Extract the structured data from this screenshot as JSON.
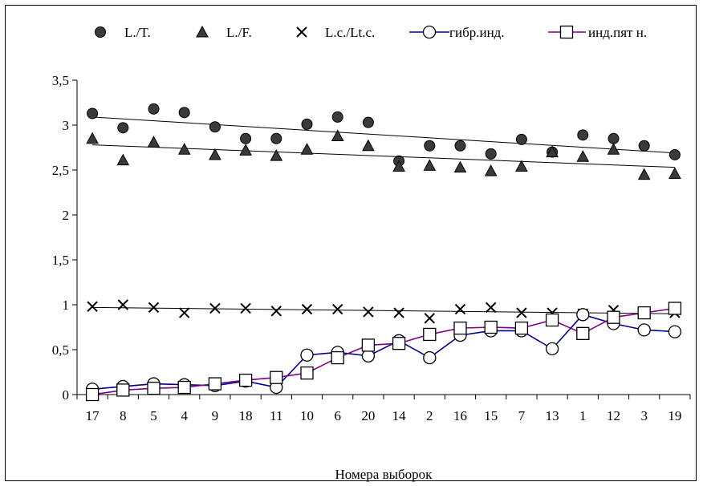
{
  "chart_data": {
    "type": "scatter",
    "xlabel": "Номера выборок",
    "ylabel": "",
    "categories": [
      "17",
      "8",
      "5",
      "4",
      "9",
      "18",
      "11",
      "10",
      "6",
      "20",
      "14",
      "2",
      "16",
      "15",
      "7",
      "13",
      "1",
      "12",
      "3",
      "19"
    ],
    "yticks": [
      "0",
      "0,5",
      "1",
      "1,5",
      "2",
      "2,5",
      "3",
      "3,5"
    ],
    "ylim": [
      0,
      3.5
    ],
    "legend_position": "top",
    "grid": false,
    "series": [
      {
        "name": "L./T.",
        "marker": "circle-filled",
        "line": false,
        "values": [
          3.13,
          2.97,
          3.18,
          3.14,
          2.98,
          2.85,
          2.85,
          3.01,
          3.09,
          3.03,
          2.6,
          2.77,
          2.77,
          2.68,
          2.84,
          2.7,
          2.89,
          2.85,
          2.77,
          2.67
        ],
        "trend": [
          3.09,
          2.69
        ]
      },
      {
        "name": "L./F.",
        "marker": "triangle-filled",
        "line": false,
        "values": [
          2.85,
          2.61,
          2.81,
          2.73,
          2.67,
          2.72,
          2.66,
          2.73,
          2.88,
          2.77,
          2.54,
          2.55,
          2.53,
          2.49,
          2.54,
          2.7,
          2.65,
          2.73,
          2.45,
          2.46
        ],
        "trend": [
          2.78,
          2.53
        ]
      },
      {
        "name": "L.c./Lt.c.",
        "marker": "x",
        "line": false,
        "values": [
          0.98,
          1.0,
          0.97,
          0.91,
          0.96,
          0.96,
          0.93,
          0.95,
          0.95,
          0.92,
          0.91,
          0.85,
          0.95,
          0.97,
          0.91,
          0.91,
          0.9,
          0.94,
          0.92,
          0.91
        ],
        "trend": [
          0.97,
          0.9
        ]
      },
      {
        "name": "гибр.инд.",
        "marker": "circle-open",
        "line": true,
        "color": "#00008b",
        "values": [
          0.06,
          0.09,
          0.12,
          0.11,
          0.1,
          0.15,
          0.08,
          0.44,
          0.47,
          0.43,
          0.6,
          0.41,
          0.66,
          0.71,
          0.71,
          0.51,
          0.89,
          0.79,
          0.72,
          0.7
        ]
      },
      {
        "name": "инд.пят н.",
        "marker": "square-open",
        "line": true,
        "color": "#800080",
        "values": [
          0.0,
          0.05,
          0.07,
          0.08,
          0.12,
          0.16,
          0.19,
          0.24,
          0.41,
          0.55,
          0.57,
          0.67,
          0.74,
          0.75,
          0.74,
          0.83,
          0.68,
          0.86,
          0.91,
          0.96
        ]
      }
    ]
  }
}
